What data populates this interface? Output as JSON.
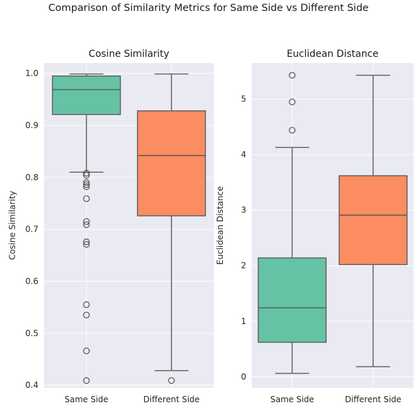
{
  "figure": {
    "suptitle": "Comparison of Similarity Metrics for Same Side vs Different Side"
  },
  "colors": {
    "panel_bg": "#eaeaf2",
    "grid": "#ffffff",
    "line": "#5a5a5a",
    "same_side": "#66c2a5",
    "different_side": "#fc8d62"
  },
  "chart_data": [
    {
      "type": "box",
      "title": "Cosine Similarity",
      "xlabel": "",
      "ylabel": "Cosine Similarity",
      "ylim": [
        0.395,
        1.02
      ],
      "yticks": [
        0.4,
        0.5,
        0.6,
        0.7,
        0.8,
        0.9,
        1.0
      ],
      "ytick_labels": [
        "0.4",
        "0.5",
        "0.6",
        "0.7",
        "0.8",
        "0.9",
        "1.0"
      ],
      "grid": true,
      "categories": [
        "Same Side",
        "Different Side"
      ],
      "boxes": [
        {
          "category": "Same Side",
          "whisker_low": 0.81,
          "q1": 0.921,
          "median": 0.969,
          "q3": 0.995,
          "whisker_high": 0.999,
          "outliers": [
            0.808,
            0.804,
            0.79,
            0.786,
            0.782,
            0.759,
            0.715,
            0.709,
            0.676,
            0.671,
            0.555,
            0.535,
            0.466,
            0.409
          ]
        },
        {
          "category": "Different Side",
          "whisker_low": 0.428,
          "q1": 0.726,
          "median": 0.842,
          "q3": 0.928,
          "whisker_high": 0.999,
          "outliers": [
            0.409
          ]
        }
      ]
    },
    {
      "type": "box",
      "title": "Euclidean Distance",
      "xlabel": "",
      "ylabel": "Euclidean Distance",
      "ylim": [
        -0.2,
        5.65
      ],
      "yticks": [
        0,
        1,
        2,
        3,
        4,
        5
      ],
      "ytick_labels": [
        "0",
        "1",
        "2",
        "3",
        "4",
        "5"
      ],
      "grid": true,
      "categories": [
        "Same Side",
        "Different Side"
      ],
      "boxes": [
        {
          "category": "Same Side",
          "whisker_low": 0.06,
          "q1": 0.62,
          "median": 1.24,
          "q3": 2.14,
          "whisker_high": 4.13,
          "outliers": [
            4.44,
            4.95,
            5.43
          ]
        },
        {
          "category": "Different Side",
          "whisker_low": 0.18,
          "q1": 2.02,
          "median": 2.91,
          "q3": 3.62,
          "whisker_high": 5.43,
          "outliers": []
        }
      ]
    }
  ]
}
